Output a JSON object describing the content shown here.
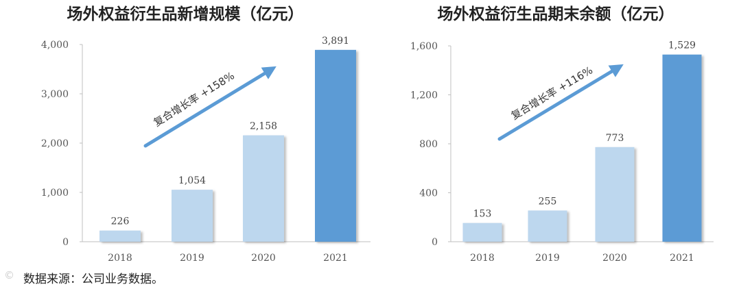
{
  "source_note": "数据来源：公司业务数据。",
  "chart_data": [
    {
      "type": "bar",
      "title": "场外权益衍生品新增规模（亿元）",
      "categories": [
        "2018",
        "2019",
        "2020",
        "2021"
      ],
      "values": [
        226,
        1054,
        2158,
        3891
      ],
      "value_labels": [
        "226",
        "1,054",
        "2,158",
        "3,891"
      ],
      "yticks": [
        "0",
        "1,000",
        "2,000",
        "3,000",
        "4,000"
      ],
      "ylim": [
        0,
        4000
      ],
      "annotation": "复合增长率  +158%",
      "xlabel": "",
      "ylabel": "",
      "colors": {
        "light": "#BDD7EE",
        "highlight": "#5B9BD5",
        "arrow": "#5B9BD5",
        "axis": "#BFBFBF"
      }
    },
    {
      "type": "bar",
      "title": "场外权益衍生品期末余额（亿元）",
      "categories": [
        "2018",
        "2019",
        "2020",
        "2021"
      ],
      "values": [
        153,
        255,
        773,
        1529
      ],
      "value_labels": [
        "153",
        "255",
        "773",
        "1,529"
      ],
      "yticks": [
        "0",
        "400",
        "800",
        "1,200",
        "1,600"
      ],
      "ylim": [
        0,
        1600
      ],
      "annotation": "复合增长率  +116%",
      "xlabel": "",
      "ylabel": "",
      "colors": {
        "light": "#BDD7EE",
        "highlight": "#5B9BD5",
        "arrow": "#5B9BD5",
        "axis": "#BFBFBF"
      }
    }
  ]
}
